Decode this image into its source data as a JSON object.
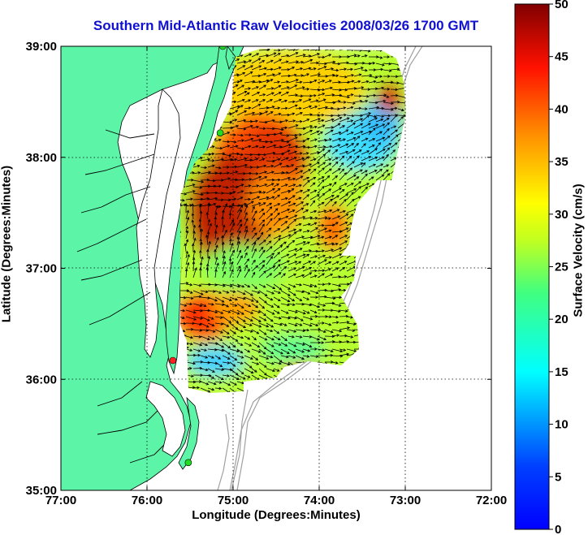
{
  "title": "Southern Mid-Atlantic Raw Velocities 2008/03/26 1700 GMT",
  "x_axis": {
    "label": "Longitude (Degrees:Minutes)",
    "ticks": [
      "77:00",
      "76:00",
      "75:00",
      "74:00",
      "73:00",
      "72:00"
    ]
  },
  "y_axis": {
    "label": "Latitude (Degrees:Minutes)",
    "ticks": [
      "39:00",
      "38:00",
      "37:00",
      "36:00",
      "35:00"
    ]
  },
  "colorbar": {
    "label": "Surface Velocity (cm/s)",
    "ticks": [
      "50",
      "45",
      "40",
      "35",
      "30",
      "25",
      "20",
      "15",
      "10",
      "5",
      "0"
    ],
    "min": 0,
    "max": 50,
    "colormap": "jet"
  },
  "map": {
    "lon_range": [
      -77,
      -72
    ],
    "lat_range": [
      35,
      39
    ],
    "land_color": "#5cf5a8",
    "grid": "dotted",
    "stations": [
      {
        "lon": -75.12,
        "lat": 39.0,
        "color": "#22dd22"
      },
      {
        "lon": -75.15,
        "lat": 38.22,
        "color": "#22dd22"
      },
      {
        "lon": -75.7,
        "lat": 36.17,
        "color": "#ff2020"
      },
      {
        "lon": -75.52,
        "lat": 35.25,
        "color": "#22dd22"
      }
    ]
  }
}
